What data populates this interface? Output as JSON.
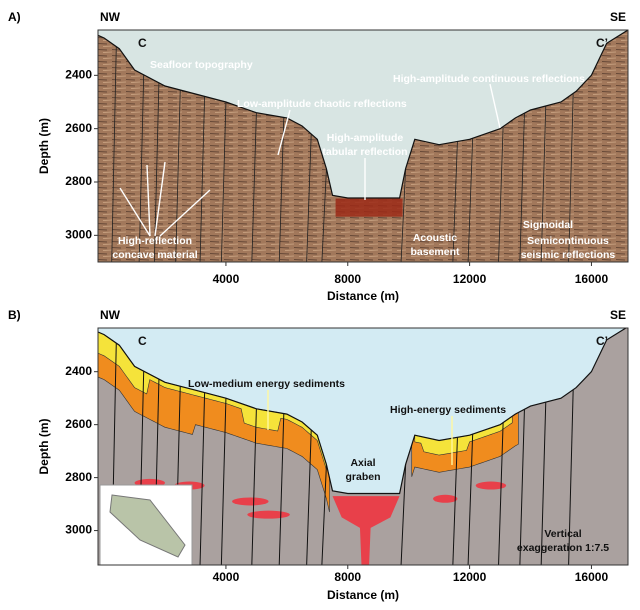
{
  "chart_data": [
    {
      "type": "cross-section",
      "panel_label": "A)",
      "left_end": "NW",
      "right_end": "SE",
      "section_start": "C",
      "section_end": "C’",
      "xlabel": "Distance (m)",
      "ylabel": "Depth (m)",
      "xlim": [
        -200,
        17200
      ],
      "ylim": [
        2230,
        3100
      ],
      "xticks": [
        4000,
        8000,
        12000,
        16000
      ],
      "yticks": [
        2400,
        2600,
        2800,
        3000
      ],
      "color": "#7a4a30",
      "x": [
        -200,
        0,
        500,
        1000,
        2000,
        3000,
        4000,
        5000,
        6000,
        6500,
        7000,
        7300,
        7500,
        8000,
        9000,
        9700,
        9900,
        10200,
        11000,
        12000,
        13000,
        13500,
        14000,
        15000,
        15500,
        16000,
        16500,
        17200
      ],
      "values": [
        2250,
        2260,
        2300,
        2380,
        2440,
        2470,
        2500,
        2540,
        2560,
        2590,
        2640,
        2750,
        2850,
        2860,
        2860,
        2860,
        2750,
        2640,
        2660,
        2640,
        2600,
        2560,
        2530,
        2500,
        2460,
        2400,
        2280,
        2230
      ],
      "annotations": [
        [
          "Seafloor topography"
        ],
        [
          "Low-amplitude chaotic reflections"
        ],
        [
          "High-amplitude continuous reflections"
        ],
        [
          "High-amplitude",
          "tabular reflection"
        ],
        [
          "High-reflection",
          "concave material"
        ],
        [
          "Acoustic",
          "basement"
        ],
        [
          "Sigmoidal"
        ],
        [
          "Semicontinuous",
          "seismic reflections"
        ]
      ]
    },
    {
      "type": "cross-section",
      "panel_label": "B)",
      "left_end": "NW",
      "right_end": "SE",
      "section_start": "C",
      "section_end": "C’",
      "xlabel": "Distance (m)",
      "ylabel": "Depth (m)",
      "xlim": [
        -200,
        17200
      ],
      "ylim": [
        2235,
        3130
      ],
      "xticks": [
        4000,
        8000,
        12000,
        16000
      ],
      "yticks": [
        2400,
        2600,
        2800,
        3000
      ],
      "color": "#aaa19f",
      "x": [
        -200,
        0,
        500,
        1000,
        2000,
        3000,
        4000,
        5000,
        6000,
        6500,
        7000,
        7300,
        7500,
        8000,
        9000,
        9700,
        9900,
        10200,
        11000,
        12000,
        13000,
        13500,
        14000,
        15000,
        15500,
        16000,
        16500,
        17200
      ],
      "values": [
        2250,
        2260,
        2300,
        2380,
        2440,
        2470,
        2500,
        2540,
        2560,
        2590,
        2640,
        2750,
        2850,
        2860,
        2860,
        2860,
        2750,
        2640,
        2660,
        2640,
        2600,
        2560,
        2530,
        2500,
        2460,
        2400,
        2280,
        2230
      ],
      "annotations": [
        [
          "Low-medium energy sediments"
        ],
        [
          "High-energy sediments"
        ],
        [
          "Axial",
          "graben"
        ],
        [
          "Vertical",
          "exaggeration 1:7.5"
        ]
      ]
    }
  ]
}
